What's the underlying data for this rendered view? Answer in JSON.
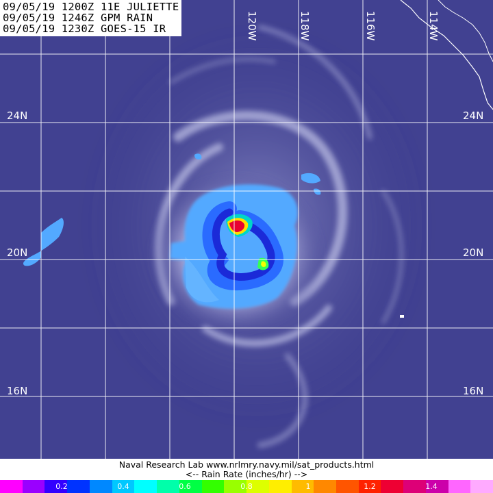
{
  "header": {
    "line1": "09/05/19 1200Z 11E JULIETTE",
    "line2": "09/05/19 1246Z GPM RAIN",
    "line3": "09/05/19 1230Z GOES-15 IR"
  },
  "map": {
    "background_color": "#3f3f8f",
    "grid_color": "#ffffff",
    "lat_labels": [
      {
        "text": "24N",
        "lat": 24
      },
      {
        "text": "20N",
        "lat": 20
      },
      {
        "text": "16N",
        "lat": 16
      }
    ],
    "lon_labels": [
      {
        "text": "120W",
        "lon": -120
      },
      {
        "text": "118W",
        "lon": -118
      },
      {
        "text": "116W",
        "lon": -116
      },
      {
        "text": "114W",
        "lon": -114
      }
    ]
  },
  "footer": {
    "credit": "Naval Research Lab   www.nrlmry.navy.mil/sat_products.html",
    "legend_title": "<--    Rain Rate (inches/hr)    -->"
  },
  "colorbar": {
    "colors": [
      "#ff00ff",
      "#9a00ff",
      "#3300ff",
      "#0033ff",
      "#0088ff",
      "#00c8ff",
      "#00ffff",
      "#00ffaa",
      "#00ff44",
      "#33ff00",
      "#99ff00",
      "#ddff00",
      "#ffee00",
      "#ffbb00",
      "#ff8800",
      "#ff5500",
      "#ff2200",
      "#ee0033",
      "#dd0077",
      "#cc00aa",
      "#ff66ff",
      "#ffaaff"
    ],
    "ticks": [
      {
        "text": "0.2",
        "value": 0.2
      },
      {
        "text": "0.4",
        "value": 0.4
      },
      {
        "text": "0.6",
        "value": 0.6
      },
      {
        "text": "0.8",
        "value": 0.8
      },
      {
        "text": "1",
        "value": 1.0
      },
      {
        "text": "1.2",
        "value": 1.2
      },
      {
        "text": "1.4",
        "value": 1.4
      }
    ]
  }
}
